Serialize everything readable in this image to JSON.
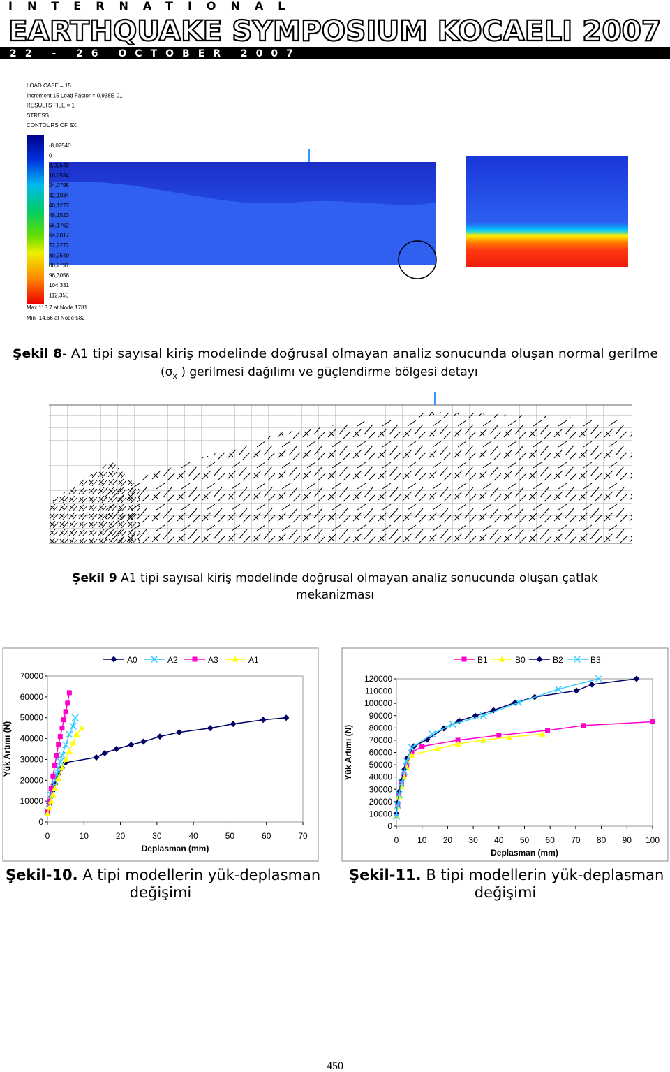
{
  "header": {
    "line1": "INTERNATIONAL",
    "line2": "EARTHQUAKE SYMPOSIUM KOCAELI 2007",
    "line3": "22 - 26 OCTOBER 2007"
  },
  "figure_8": {
    "info": [
      "LOAD CASE =   15",
      "Increment 15 Load Factor = 0.938E-01",
      "RESULTS FILE =   1",
      "STRESS",
      "CONTOURS OF SX"
    ],
    "legend_values": [
      "-8,02540",
      "0",
      "8,02540",
      "16,0534",
      "24,0795",
      "32,1034",
      "40,1277",
      "48,1523",
      "56,1762",
      "64,2017",
      "72,2272",
      "80,2540",
      "88,2791",
      "96,3056",
      "104,331",
      "112,355"
    ],
    "max": "Max 113.7 at Node 1781",
    "min": "Min -14.66 at Node 582",
    "caption": {
      "label": "Şekil 8",
      "line1": "- A1 tipi  sayısal kiriş modelinde doğrusal olmayan analiz sonucunda oluşan normal gerilme",
      "open": "(σ",
      "sub": "x",
      "line2": " ) gerilmesi dağılımı ve güçlendirme bölgesi detayı"
    }
  },
  "figure_9": {
    "caption": {
      "label": "Şekil 9",
      "line1": " A1 tipi sayısal kiriş modelinde doğrusal olmayan analiz sonucunda oluşan çatlak",
      "line2": "mekanizması"
    }
  },
  "chart_data": [
    {
      "type": "line",
      "xlabel": "Deplasman (mm)",
      "ylabel": "Yük Artımı (N)",
      "xlim": [
        0,
        70
      ],
      "ylim": [
        0,
        70000
      ],
      "xticks": [
        0,
        10,
        20,
        30,
        40,
        50,
        60,
        70
      ],
      "yticks": [
        0,
        10000,
        20000,
        30000,
        40000,
        50000,
        60000,
        70000
      ],
      "series": [
        {
          "name": "A0",
          "color": "#000066",
          "marker": "diamond",
          "x": [
            0,
            0.5,
            1,
            1.5,
            2,
            2.5,
            3,
            4,
            5,
            13.4,
            15.7,
            18.9,
            22.9,
            26.3,
            30.8,
            36.1,
            44.6,
            50.9,
            59.1,
            65.4
          ],
          "values": [
            5000,
            9000,
            12000,
            15000,
            18000,
            21000,
            23000,
            26000,
            28500,
            31000,
            33000,
            35000,
            37000,
            38500,
            41000,
            43000,
            45000,
            47000,
            49000,
            50000
          ]
        },
        {
          "name": "A2",
          "color": "#33ccff",
          "marker": "x",
          "x": [
            0,
            0.5,
            1,
            1.5,
            2,
            2.5,
            3,
            3.5,
            4,
            5,
            6,
            7,
            7.6
          ],
          "values": [
            5000,
            9000,
            13000,
            17000,
            20000,
            23000,
            26000,
            29000,
            32000,
            37000,
            42000,
            46000,
            50000
          ]
        },
        {
          "name": "A3",
          "color": "#ff00cc",
          "marker": "square",
          "x": [
            0,
            0.5,
            1,
            1.5,
            2,
            2.5,
            3,
            3.5,
            4,
            4.5,
            5,
            5.5,
            6
          ],
          "values": [
            5000,
            10000,
            16000,
            22000,
            27000,
            32000,
            37000,
            41000,
            45000,
            49000,
            53000,
            57000,
            62000
          ]
        },
        {
          "name": "A1",
          "color": "#ffff00",
          "marker": "triangle",
          "x": [
            0,
            0.5,
            1,
            1.5,
            2,
            3,
            4,
            5,
            6,
            7,
            8,
            9.4
          ],
          "values": [
            4000,
            7000,
            10000,
            13000,
            16000,
            21000,
            26000,
            30000,
            34000,
            38000,
            42000,
            45000
          ]
        }
      ]
    },
    {
      "type": "line",
      "xlabel": "Deplasman (mm)",
      "ylabel": "Yük Artımı (N)",
      "xlim": [
        0,
        100
      ],
      "ylim": [
        0,
        120000
      ],
      "xticks": [
        0,
        10,
        20,
        30,
        40,
        50,
        60,
        70,
        80,
        90,
        100
      ],
      "yticks": [
        0,
        10000,
        20000,
        30000,
        40000,
        50000,
        60000,
        70000,
        80000,
        90000,
        100000,
        110000,
        120000
      ],
      "series": [
        {
          "name": "B1",
          "color": "#ff00cc",
          "marker": "square",
          "x": [
            0,
            0.5,
            1,
            2,
            3,
            4,
            6,
            10,
            24,
            40,
            59,
            73,
            100
          ],
          "values": [
            10000,
            18000,
            26000,
            34000,
            42000,
            50000,
            60000,
            65000,
            70000,
            74000,
            78000,
            82000,
            85000
          ]
        },
        {
          "name": "B0",
          "color": "#ffff00",
          "marker": "triangle",
          "x": [
            0,
            0.5,
            1,
            2,
            3,
            4,
            6,
            16,
            24,
            34,
            44,
            57
          ],
          "values": [
            8000,
            16000,
            24000,
            32000,
            40000,
            48000,
            58000,
            63000,
            67000,
            70000,
            72500,
            75000
          ]
        },
        {
          "name": "B2",
          "color": "#000066",
          "marker": "diamond",
          "x": [
            0,
            0.5,
            1,
            2,
            3,
            4,
            6.8,
            12,
            18.5,
            24.5,
            30.8,
            37.9,
            46.3,
            54,
            70.3,
            76.3,
            93.7
          ],
          "values": [
            10000,
            19000,
            28000,
            37000,
            46000,
            55000,
            65000,
            70500,
            79600,
            85800,
            89800,
            94400,
            100600,
            105200,
            110300,
            115400,
            120000
          ]
        },
        {
          "name": "B3",
          "color": "#33ccff",
          "marker": "x",
          "x": [
            0,
            0.5,
            1,
            2,
            3,
            4,
            6,
            14,
            22,
            34,
            47.7,
            63.2,
            79
          ],
          "values": [
            8000,
            17000,
            26000,
            35000,
            44000,
            53000,
            64000,
            75000,
            83000,
            90000,
            100700,
            111500,
            120000
          ]
        }
      ]
    }
  ],
  "figure_10_caption": {
    "label": "Şekil-10.",
    "line1": " A tipi modellerin yük-deplasman",
    "line2": "değişimi"
  },
  "figure_11_caption": {
    "label": "Şekil-11.",
    "line1": " B tipi modellerin yük-deplasman",
    "line2": "değişimi"
  },
  "page_number": "450"
}
